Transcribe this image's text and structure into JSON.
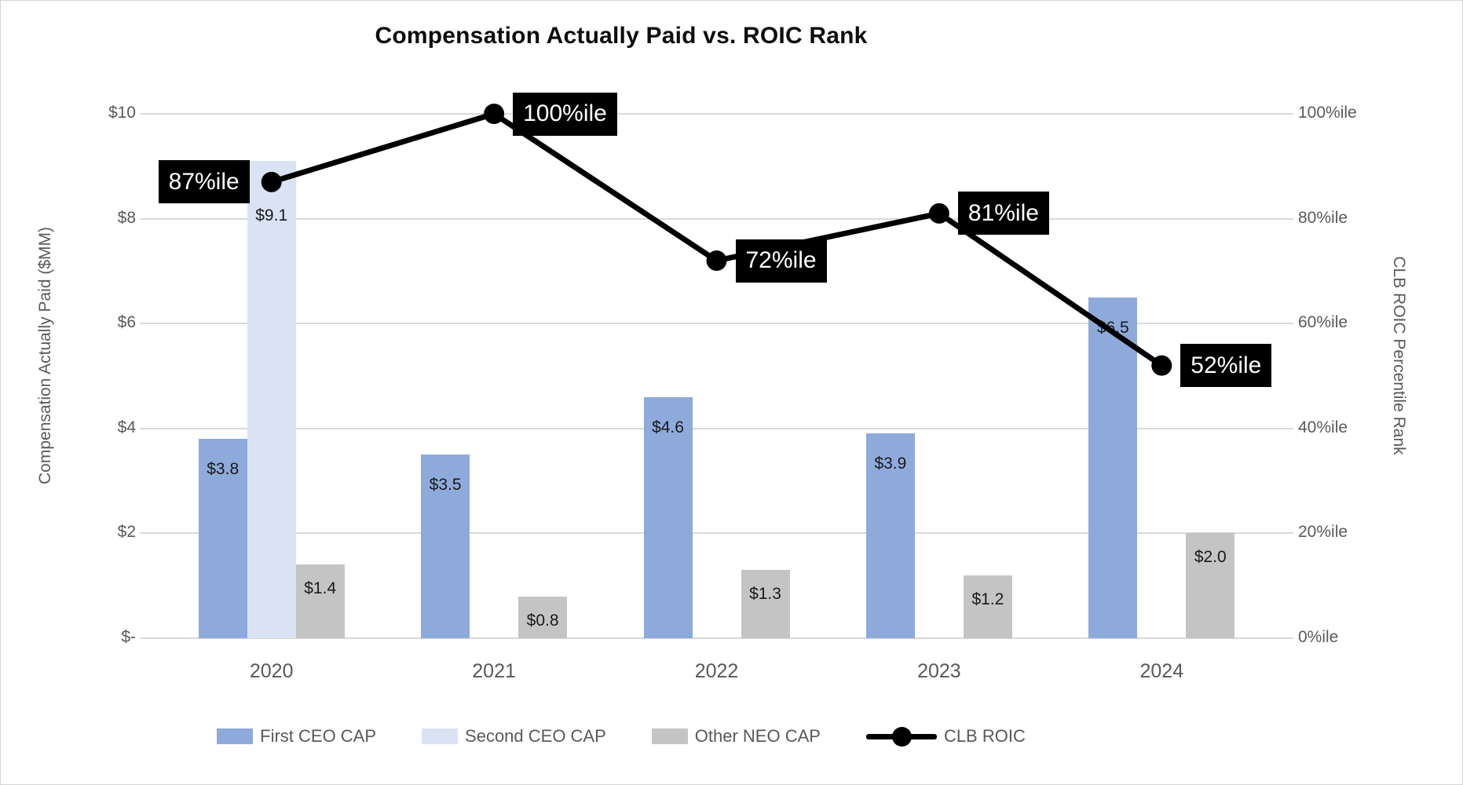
{
  "title": "Compensation Actually Paid vs. ROIC Rank",
  "chart_data": {
    "type": "combo-bar-line",
    "title": "Compensation Actually Paid vs. ROIC Rank",
    "categories": [
      "2020",
      "2021",
      "2022",
      "2023",
      "2024"
    ],
    "series": [
      {
        "name": "First CEO CAP",
        "type": "bar",
        "axis": "left",
        "color": "#8EAADB",
        "values": [
          3.8,
          3.5,
          4.6,
          3.9,
          6.5
        ],
        "data_labels": [
          "$3.8",
          "$3.5",
          "$4.6",
          "$3.9",
          "$6.5"
        ],
        "label_offset": 40,
        "label_style": "plain"
      },
      {
        "name": "Second CEO CAP",
        "type": "bar",
        "axis": "left",
        "color": "#DAE3F3",
        "values": [
          9.1,
          null,
          null,
          null,
          null
        ],
        "data_labels": [
          "$9.1",
          null,
          null,
          null,
          null
        ],
        "label_offset": 71,
        "label_style": "on-lightblue"
      },
      {
        "name": "Other NEO CAP",
        "type": "bar",
        "axis": "left",
        "color": "#C4C4C4",
        "values": [
          1.4,
          0.8,
          1.3,
          1.2,
          2.0
        ],
        "data_labels": [
          "$1.4",
          "$0.8",
          "$1.3",
          "$1.2",
          "$2.0"
        ],
        "label_offset": 32,
        "label_style": "on-gray"
      },
      {
        "name": "CLB ROIC",
        "type": "line",
        "axis": "right",
        "color": "#000000",
        "values": [
          87,
          100,
          72,
          81,
          52
        ],
        "data_labels": [
          "87%ile",
          "100%ile",
          "72%ile",
          "81%ile",
          "52%ile"
        ],
        "label_side": [
          "left",
          "right",
          "right",
          "right",
          "right"
        ]
      }
    ],
    "left_axis": {
      "title": "Compensation Actually Paid ($MM)",
      "min": 0,
      "max": 10,
      "tick_labels": [
        "$10",
        "$8",
        "$6",
        "$4",
        "$2",
        "$-"
      ],
      "tick_values": [
        10,
        8,
        6,
        4,
        2,
        0
      ]
    },
    "right_axis": {
      "title": "CLB ROIC Percentile Rank",
      "min": 0,
      "max": 100,
      "tick_labels": [
        "100%ile",
        "80%ile",
        "60%ile",
        "40%ile",
        "20%ile",
        "0%ile"
      ],
      "tick_values": [
        100,
        80,
        60,
        40,
        20,
        0
      ]
    },
    "legend": [
      {
        "label": "First CEO CAP",
        "swatch": "bar",
        "color": "#8EAADB"
      },
      {
        "label": "Second CEO CAP",
        "swatch": "bar",
        "color": "#DAE3F3"
      },
      {
        "label": "Other NEO CAP",
        "swatch": "bar",
        "color": "#C4C4C4"
      },
      {
        "label": "CLB ROIC",
        "swatch": "line-marker",
        "color": "#000000"
      }
    ],
    "grid": true,
    "legend_position": "bottom"
  },
  "colors": {
    "grid": "#D9D9D9",
    "axis_text": "#595959",
    "bar_label_text": "#1A1A1A",
    "callout_bg": "#000000",
    "callout_text": "#FFFFFF",
    "background": "#FFFFFF"
  }
}
